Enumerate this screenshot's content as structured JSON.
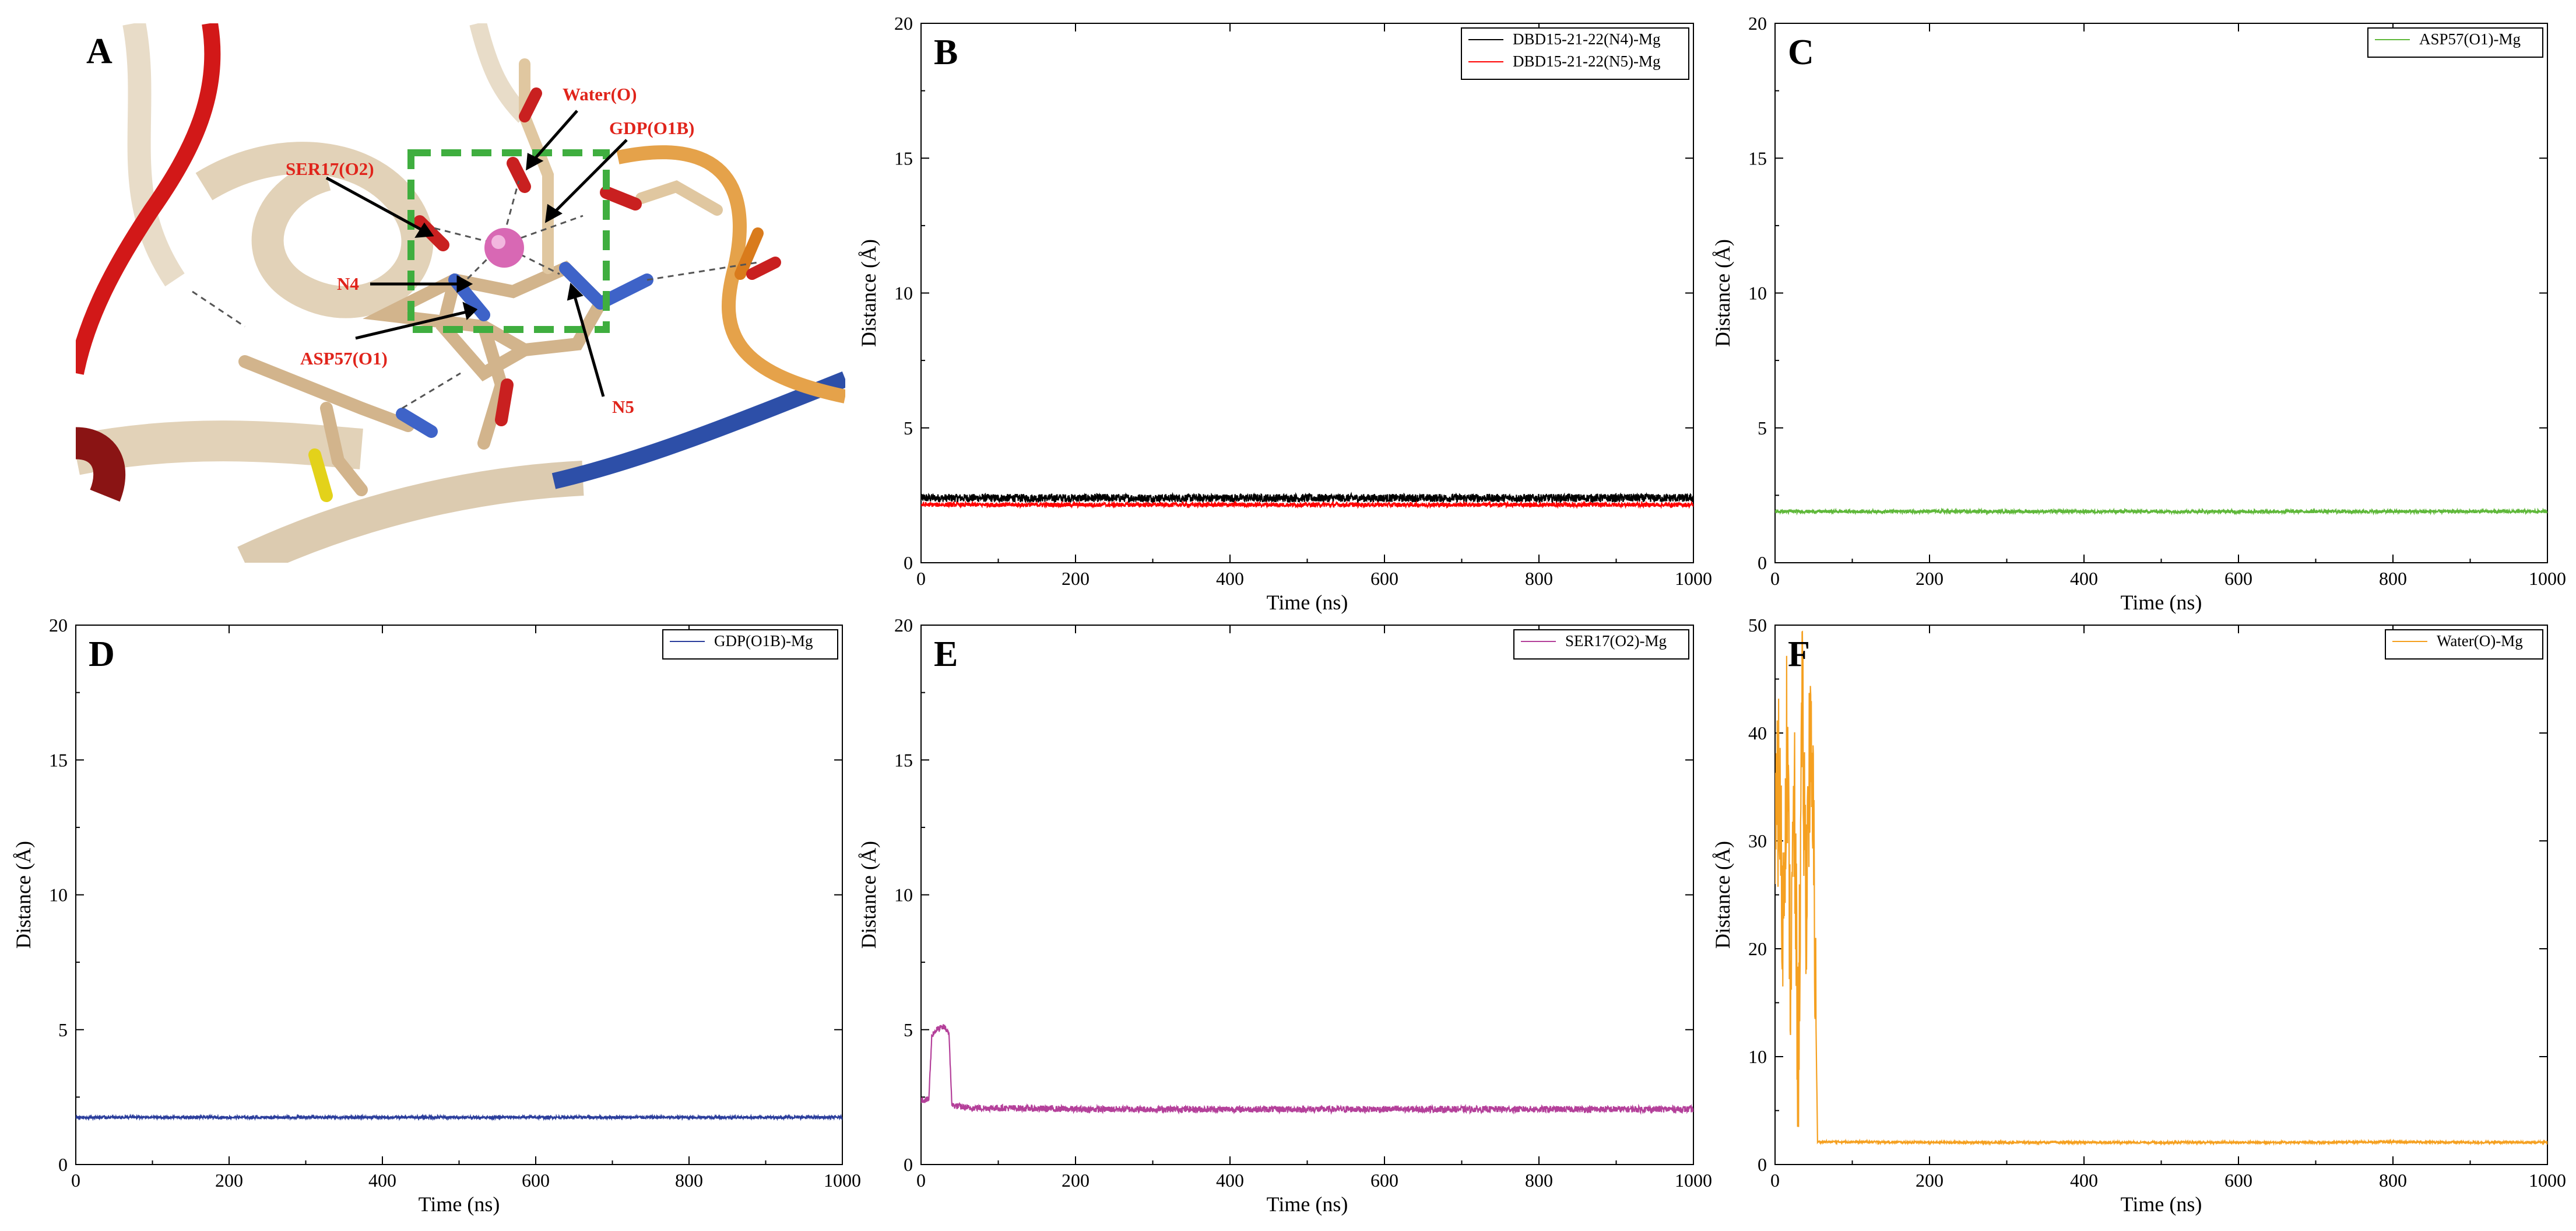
{
  "figure": {
    "panel_A": {
      "letter": "A",
      "labels": {
        "water": "Water(O)",
        "gdp": "GDP(O1B)",
        "ser": "SER17(O2)",
        "n4": "N4",
        "asp": "ASP57(O1)",
        "n5": "N5"
      },
      "colors": {
        "label": "#e0241b",
        "ion": "#d868b4",
        "box": "#3fae3f",
        "helix": "#e2d2b8",
        "red_strand": "#d21818",
        "blue_strand": "#2d4fa8",
        "orange_strand": "#e5a24a"
      }
    }
  },
  "chart_data": [
    {
      "type": "line",
      "panel": "B",
      "xlabel": "Time (ns)",
      "ylabel": "Distance (Å)",
      "xlim": [
        0,
        1000
      ],
      "ylim": [
        0,
        20
      ],
      "xticks": [
        0,
        200,
        400,
        600,
        800,
        1000
      ],
      "xtick_labels": [
        "0",
        "200",
        "400",
        "600",
        "800",
        "1000"
      ],
      "yticks": [
        0,
        5,
        10,
        15,
        20
      ],
      "ytick_labels": [
        "0",
        "5",
        "10",
        "15",
        "20"
      ],
      "legend": "top-right",
      "series": [
        {
          "name": "DBD15-21-22(N4)-Mg",
          "color": "#000000",
          "x": [
            0,
            100,
            200,
            300,
            400,
            500,
            600,
            700,
            800,
            900,
            1000
          ],
          "values": [
            2.4,
            2.4,
            2.4,
            2.4,
            2.4,
            2.4,
            2.4,
            2.4,
            2.4,
            2.4,
            2.4
          ],
          "noise": 0.15
        },
        {
          "name": "DBD15-21-22(N5)-Mg",
          "color": "#ff0000",
          "x": [
            0,
            100,
            200,
            300,
            400,
            500,
            600,
            700,
            800,
            900,
            1000
          ],
          "values": [
            2.15,
            2.15,
            2.15,
            2.15,
            2.15,
            2.15,
            2.15,
            2.15,
            2.15,
            2.15,
            2.15
          ],
          "noise": 0.08
        }
      ]
    },
    {
      "type": "line",
      "panel": "C",
      "xlabel": "Time (ns)",
      "ylabel": "Distance (Å)",
      "xlim": [
        0,
        1000
      ],
      "ylim": [
        0,
        20
      ],
      "xticks": [
        0,
        200,
        400,
        600,
        800,
        1000
      ],
      "xtick_labels": [
        "0",
        "200",
        "400",
        "600",
        "800",
        "1000"
      ],
      "yticks": [
        0,
        5,
        10,
        15,
        20
      ],
      "ytick_labels": [
        "0",
        "5",
        "10",
        "15",
        "20"
      ],
      "legend": "top-right",
      "series": [
        {
          "name": "ASP57(O1)-Mg",
          "color": "#5fb83a",
          "x": [
            0,
            100,
            200,
            300,
            400,
            500,
            600,
            700,
            800,
            900,
            1000
          ],
          "values": [
            1.9,
            1.9,
            1.9,
            1.9,
            1.9,
            1.9,
            1.9,
            1.9,
            1.9,
            1.9,
            1.9
          ],
          "noise": 0.06
        }
      ]
    },
    {
      "type": "line",
      "panel": "D",
      "xlabel": "Time (ns)",
      "ylabel": "Distance (Å)",
      "xlim": [
        0,
        1000
      ],
      "ylim": [
        0,
        20
      ],
      "xticks": [
        0,
        200,
        400,
        600,
        800,
        1000
      ],
      "xtick_labels": [
        "0",
        "200",
        "400",
        "600",
        "800",
        "1000"
      ],
      "yticks": [
        0,
        5,
        10,
        15,
        20
      ],
      "ytick_labels": [
        "0",
        "5",
        "10",
        "15",
        "20"
      ],
      "legend": "top-right",
      "series": [
        {
          "name": "GDP(O1B)-Mg",
          "color": "#2b3e9c",
          "x": [
            0,
            100,
            200,
            300,
            400,
            500,
            600,
            700,
            800,
            900,
            1000
          ],
          "values": [
            1.75,
            1.75,
            1.75,
            1.75,
            1.75,
            1.75,
            1.75,
            1.75,
            1.75,
            1.75,
            1.75
          ],
          "noise": 0.05
        }
      ]
    },
    {
      "type": "line",
      "panel": "E",
      "xlabel": "Time (ns)",
      "ylabel": "Distance (Å)",
      "xlim": [
        0,
        1000
      ],
      "ylim": [
        0,
        20
      ],
      "xticks": [
        0,
        200,
        400,
        600,
        800,
        1000
      ],
      "xtick_labels": [
        "0",
        "200",
        "400",
        "600",
        "800",
        "1000"
      ],
      "yticks": [
        0,
        5,
        10,
        15,
        20
      ],
      "ytick_labels": [
        "0",
        "5",
        "10",
        "15",
        "20"
      ],
      "legend": "top-right",
      "series": [
        {
          "name": "SER17(O2)-Mg",
          "color": "#b4409a",
          "x": [
            0,
            10,
            14,
            20,
            30,
            36,
            40,
            60,
            100,
            200,
            300,
            400,
            500,
            600,
            700,
            800,
            900,
            1000
          ],
          "values": [
            2.4,
            2.4,
            4.8,
            5.0,
            5.1,
            4.9,
            2.2,
            2.1,
            2.1,
            2.05,
            2.05,
            2.05,
            2.05,
            2.05,
            2.05,
            2.05,
            2.05,
            2.05
          ],
          "noise": 0.12
        }
      ]
    },
    {
      "type": "line",
      "panel": "F",
      "xlabel": "Time (ns)",
      "ylabel": "Distance (Å)",
      "xlim": [
        0,
        1000
      ],
      "ylim": [
        0,
        50
      ],
      "xticks": [
        0,
        200,
        400,
        600,
        800,
        1000
      ],
      "xtick_labels": [
        "0",
        "200",
        "400",
        "600",
        "800",
        "1000"
      ],
      "yticks": [
        0,
        10,
        20,
        30,
        40,
        50
      ],
      "ytick_labels": [
        "0",
        "10",
        "20",
        "30",
        "40",
        "50"
      ],
      "legend": "top-right",
      "series": [
        {
          "name": "Water(O)-Mg",
          "color": "#f5a020",
          "x": [
            0,
            5,
            10,
            15,
            20,
            25,
            30,
            35,
            40,
            45,
            50,
            55,
            60,
            100,
            200,
            300,
            400,
            500,
            600,
            700,
            800,
            900,
            1000
          ],
          "values": [
            28,
            36,
            22,
            40,
            18,
            33,
            8,
            42,
            25,
            38,
            30,
            2.1,
            2.1,
            2.1,
            2.05,
            2.05,
            2.05,
            2.05,
            2.05,
            2.05,
            2.1,
            2.05,
            2.05
          ],
          "noise": 0.1,
          "spike_noise_until": 53,
          "spike_noise": 9
        }
      ]
    }
  ]
}
